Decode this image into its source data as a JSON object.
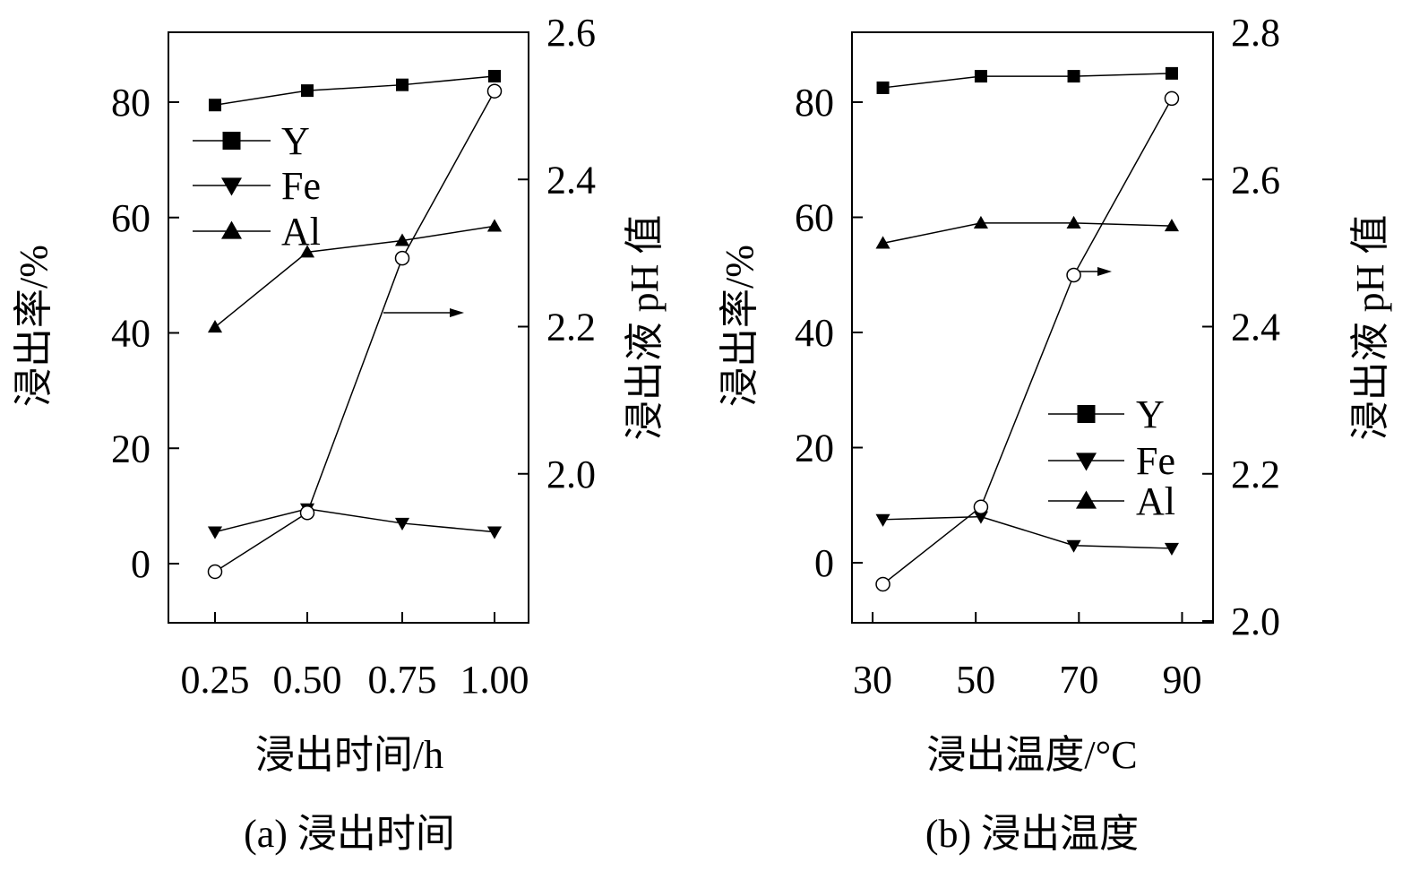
{
  "charts": [
    {
      "id": "a",
      "caption": "(a) 浸出时间",
      "chart_data": {
        "type": "line",
        "xlabel": "浸出时间/h",
        "ylabel": "浸出率/%",
        "y2label": "浸出液 pH 值",
        "x": [
          0.25,
          0.5,
          0.75,
          1.0
        ],
        "x_tick_labels": [
          "0.25",
          "0.50",
          "0.75",
          "1.00"
        ],
        "y_ticks": [
          0,
          20,
          40,
          60,
          80
        ],
        "y_tick_labels": [
          "0",
          "20",
          "40",
          "60",
          "80"
        ],
        "ylim": [
          -10.5,
          92
        ],
        "y2_ticks": [
          2.0,
          2.2,
          2.4,
          2.6
        ],
        "y2_tick_labels": [
          "2.0",
          "2.2",
          "2.4",
          "2.6"
        ],
        "y2lim": [
          1.8,
          2.6
        ],
        "series": [
          {
            "name": "Y",
            "marker": "square",
            "axis": "left",
            "values": [
              79.5,
              82.0,
              83.0,
              84.5
            ]
          },
          {
            "name": "Fe",
            "marker": "triangle-down",
            "axis": "left",
            "values": [
              5.5,
              9.5,
              7.0,
              5.5
            ]
          },
          {
            "name": "Al",
            "marker": "triangle-up",
            "axis": "left",
            "values": [
              41.0,
              54.0,
              56.0,
              58.5
            ]
          },
          {
            "name": "",
            "marker": "circle-open",
            "axis": "right",
            "values": [
              1.867,
              1.947,
              2.293,
              2.52
            ]
          }
        ],
        "legend": [
          "Y",
          "Fe",
          "Al"
        ],
        "legend_position": "top-left",
        "arrow": "right"
      }
    },
    {
      "id": "b",
      "caption": "(b) 浸出温度",
      "chart_data": {
        "type": "line",
        "xlabel": "浸出温度/°C",
        "ylabel": "浸出率/%",
        "y2label": "浸出液 pH 值",
        "x": [
          32,
          51,
          69,
          88
        ],
        "x_tick_labels": [
          "30",
          "50",
          "70",
          "90"
        ],
        "x_tick_values": [
          30,
          50,
          70,
          90
        ],
        "xlim": [
          26,
          96
        ],
        "y_ticks": [
          0,
          20,
          40,
          60,
          80
        ],
        "y_tick_labels": [
          "0",
          "20",
          "40",
          "60",
          "80"
        ],
        "ylim": [
          -10.5,
          92
        ],
        "y2_ticks": [
          2.0,
          2.2,
          2.4,
          2.6,
          2.8
        ],
        "y2_tick_labels": [
          "2.0",
          "2.2",
          "2.4",
          "2.6",
          "2.8"
        ],
        "y2lim": [
          2.0,
          2.8
        ],
        "series": [
          {
            "name": "Y",
            "marker": "square",
            "axis": "left",
            "values": [
              82.5,
              84.5,
              84.5,
              85.0
            ]
          },
          {
            "name": "Fe",
            "marker": "triangle-down",
            "axis": "left",
            "values": [
              7.5,
              8.0,
              3.0,
              2.5
            ]
          },
          {
            "name": "Al",
            "marker": "triangle-up",
            "axis": "left",
            "values": [
              55.5,
              59.0,
              59.0,
              58.5
            ]
          },
          {
            "name": "",
            "marker": "circle-open",
            "axis": "right",
            "values": [
              2.05,
              2.155,
              2.47,
              2.71
            ]
          }
        ],
        "legend": [
          "Y",
          "Fe",
          "Al"
        ],
        "legend_position": "bottom-right",
        "arrow": "right"
      }
    }
  ]
}
